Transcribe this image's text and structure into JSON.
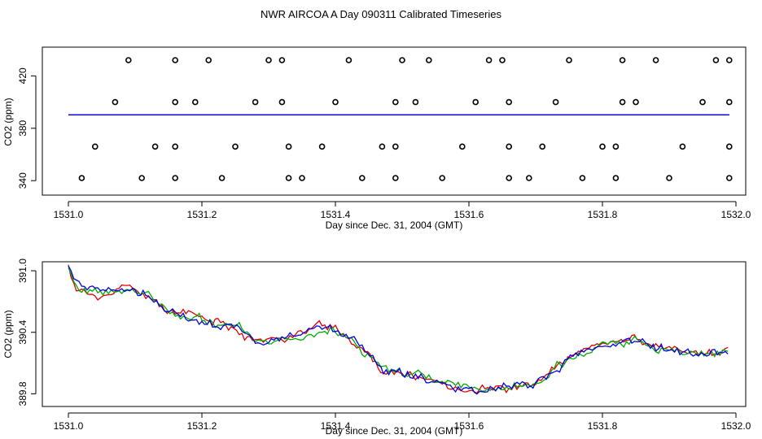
{
  "title": "NWR AIRCOA A  Day 090311  Calibrated Timeseries",
  "colors": {
    "red": "#dd0000",
    "green": "#00aa00",
    "blue": "#0000dd",
    "axis": "#000000"
  },
  "chart_data": [
    {
      "type": "scatter",
      "title": "",
      "xlabel": "Day since Dec. 31, 2004 (GMT)",
      "ylabel": "CO2 (ppm)",
      "xlim": [
        1531.0,
        1532.0
      ],
      "ylim": [
        335,
        440
      ],
      "x_ticks": [
        "1531.0",
        "1531.2",
        "1531.4",
        "1531.6",
        "1531.8",
        "1532.0"
      ],
      "y_ticks": [
        "340",
        "380",
        "420"
      ],
      "y_tick_values": [
        340,
        380,
        420
      ],
      "series": [
        {
          "name": "calibration points",
          "marker": "circle",
          "points": [
            [
              1531.09,
              432
            ],
            [
              1531.16,
              432
            ],
            [
              1531.21,
              432
            ],
            [
              1531.3,
              432
            ],
            [
              1531.32,
              432
            ],
            [
              1531.42,
              432
            ],
            [
              1531.5,
              432
            ],
            [
              1531.54,
              432
            ],
            [
              1531.63,
              432
            ],
            [
              1531.65,
              432
            ],
            [
              1531.75,
              432
            ],
            [
              1531.83,
              432
            ],
            [
              1531.88,
              432
            ],
            [
              1531.97,
              432
            ],
            [
              1531.99,
              432
            ],
            [
              1531.07,
              400
            ],
            [
              1531.16,
              400
            ],
            [
              1531.19,
              400
            ],
            [
              1531.28,
              400
            ],
            [
              1531.32,
              400
            ],
            [
              1531.4,
              400
            ],
            [
              1531.49,
              400
            ],
            [
              1531.52,
              400
            ],
            [
              1531.61,
              400
            ],
            [
              1531.66,
              400
            ],
            [
              1531.73,
              400
            ],
            [
              1531.83,
              400
            ],
            [
              1531.85,
              400
            ],
            [
              1531.95,
              400
            ],
            [
              1531.99,
              400
            ],
            [
              1531.04,
              366
            ],
            [
              1531.13,
              366
            ],
            [
              1531.16,
              366
            ],
            [
              1531.25,
              366
            ],
            [
              1531.33,
              366
            ],
            [
              1531.38,
              366
            ],
            [
              1531.47,
              366
            ],
            [
              1531.49,
              366
            ],
            [
              1531.59,
              366
            ],
            [
              1531.66,
              366
            ],
            [
              1531.71,
              366
            ],
            [
              1531.8,
              366
            ],
            [
              1531.82,
              366
            ],
            [
              1531.92,
              366
            ],
            [
              1531.99,
              366
            ],
            [
              1531.02,
              342
            ],
            [
              1531.11,
              342
            ],
            [
              1531.16,
              342
            ],
            [
              1531.23,
              342
            ],
            [
              1531.33,
              342
            ],
            [
              1531.35,
              342
            ],
            [
              1531.44,
              342
            ],
            [
              1531.49,
              342
            ],
            [
              1531.56,
              342
            ],
            [
              1531.66,
              342
            ],
            [
              1531.69,
              342
            ],
            [
              1531.77,
              342
            ],
            [
              1531.82,
              342
            ],
            [
              1531.9,
              342
            ],
            [
              1531.99,
              342
            ]
          ]
        },
        {
          "name": "red",
          "color": "#dd0000",
          "constant": 390.3
        },
        {
          "name": "green",
          "color": "#00aa00",
          "constant": 390.3
        },
        {
          "name": "blue",
          "color": "#0000dd",
          "constant": 390.3
        }
      ]
    },
    {
      "type": "line",
      "title": "",
      "xlabel": "Day since Dec. 31, 2004 (GMT)",
      "ylabel": "CO2 (ppm)",
      "xlim": [
        1531.0,
        1532.0
      ],
      "ylim": [
        389.74,
        391.04
      ],
      "x_ticks": [
        "1531.0",
        "1531.2",
        "1531.4",
        "1531.6",
        "1531.8",
        "1532.0"
      ],
      "y_ticks": [
        "389.8",
        "390.4",
        "391.0"
      ],
      "y_tick_values": [
        389.8,
        390.4,
        391.0
      ],
      "anchors": {
        "x": [
          1531.0,
          1531.01,
          1531.03,
          1531.06,
          1531.09,
          1531.12,
          1531.15,
          1531.2,
          1531.25,
          1531.28,
          1531.3,
          1531.33,
          1531.36,
          1531.39,
          1531.42,
          1531.45,
          1531.47,
          1531.5,
          1531.53,
          1531.56,
          1531.6,
          1531.63,
          1531.66,
          1531.7,
          1531.73,
          1531.76,
          1531.8,
          1531.83,
          1531.85,
          1531.88,
          1531.92,
          1531.96,
          1531.99
        ],
        "y": [
          391.03,
          390.85,
          390.76,
          390.78,
          390.82,
          390.74,
          390.6,
          390.52,
          390.45,
          390.33,
          390.32,
          390.36,
          390.42,
          390.46,
          390.34,
          390.18,
          390.04,
          389.97,
          389.96,
          389.9,
          389.86,
          389.86,
          389.85,
          389.9,
          390.04,
          390.18,
          390.26,
          390.3,
          390.34,
          390.26,
          390.22,
          390.2,
          390.22
        ]
      },
      "series": [
        {
          "name": "red",
          "color": "#dd0000",
          "seed": 11
        },
        {
          "name": "green",
          "color": "#00aa00",
          "seed": 23
        },
        {
          "name": "blue",
          "color": "#0000dd",
          "seed": 37
        }
      ]
    }
  ]
}
